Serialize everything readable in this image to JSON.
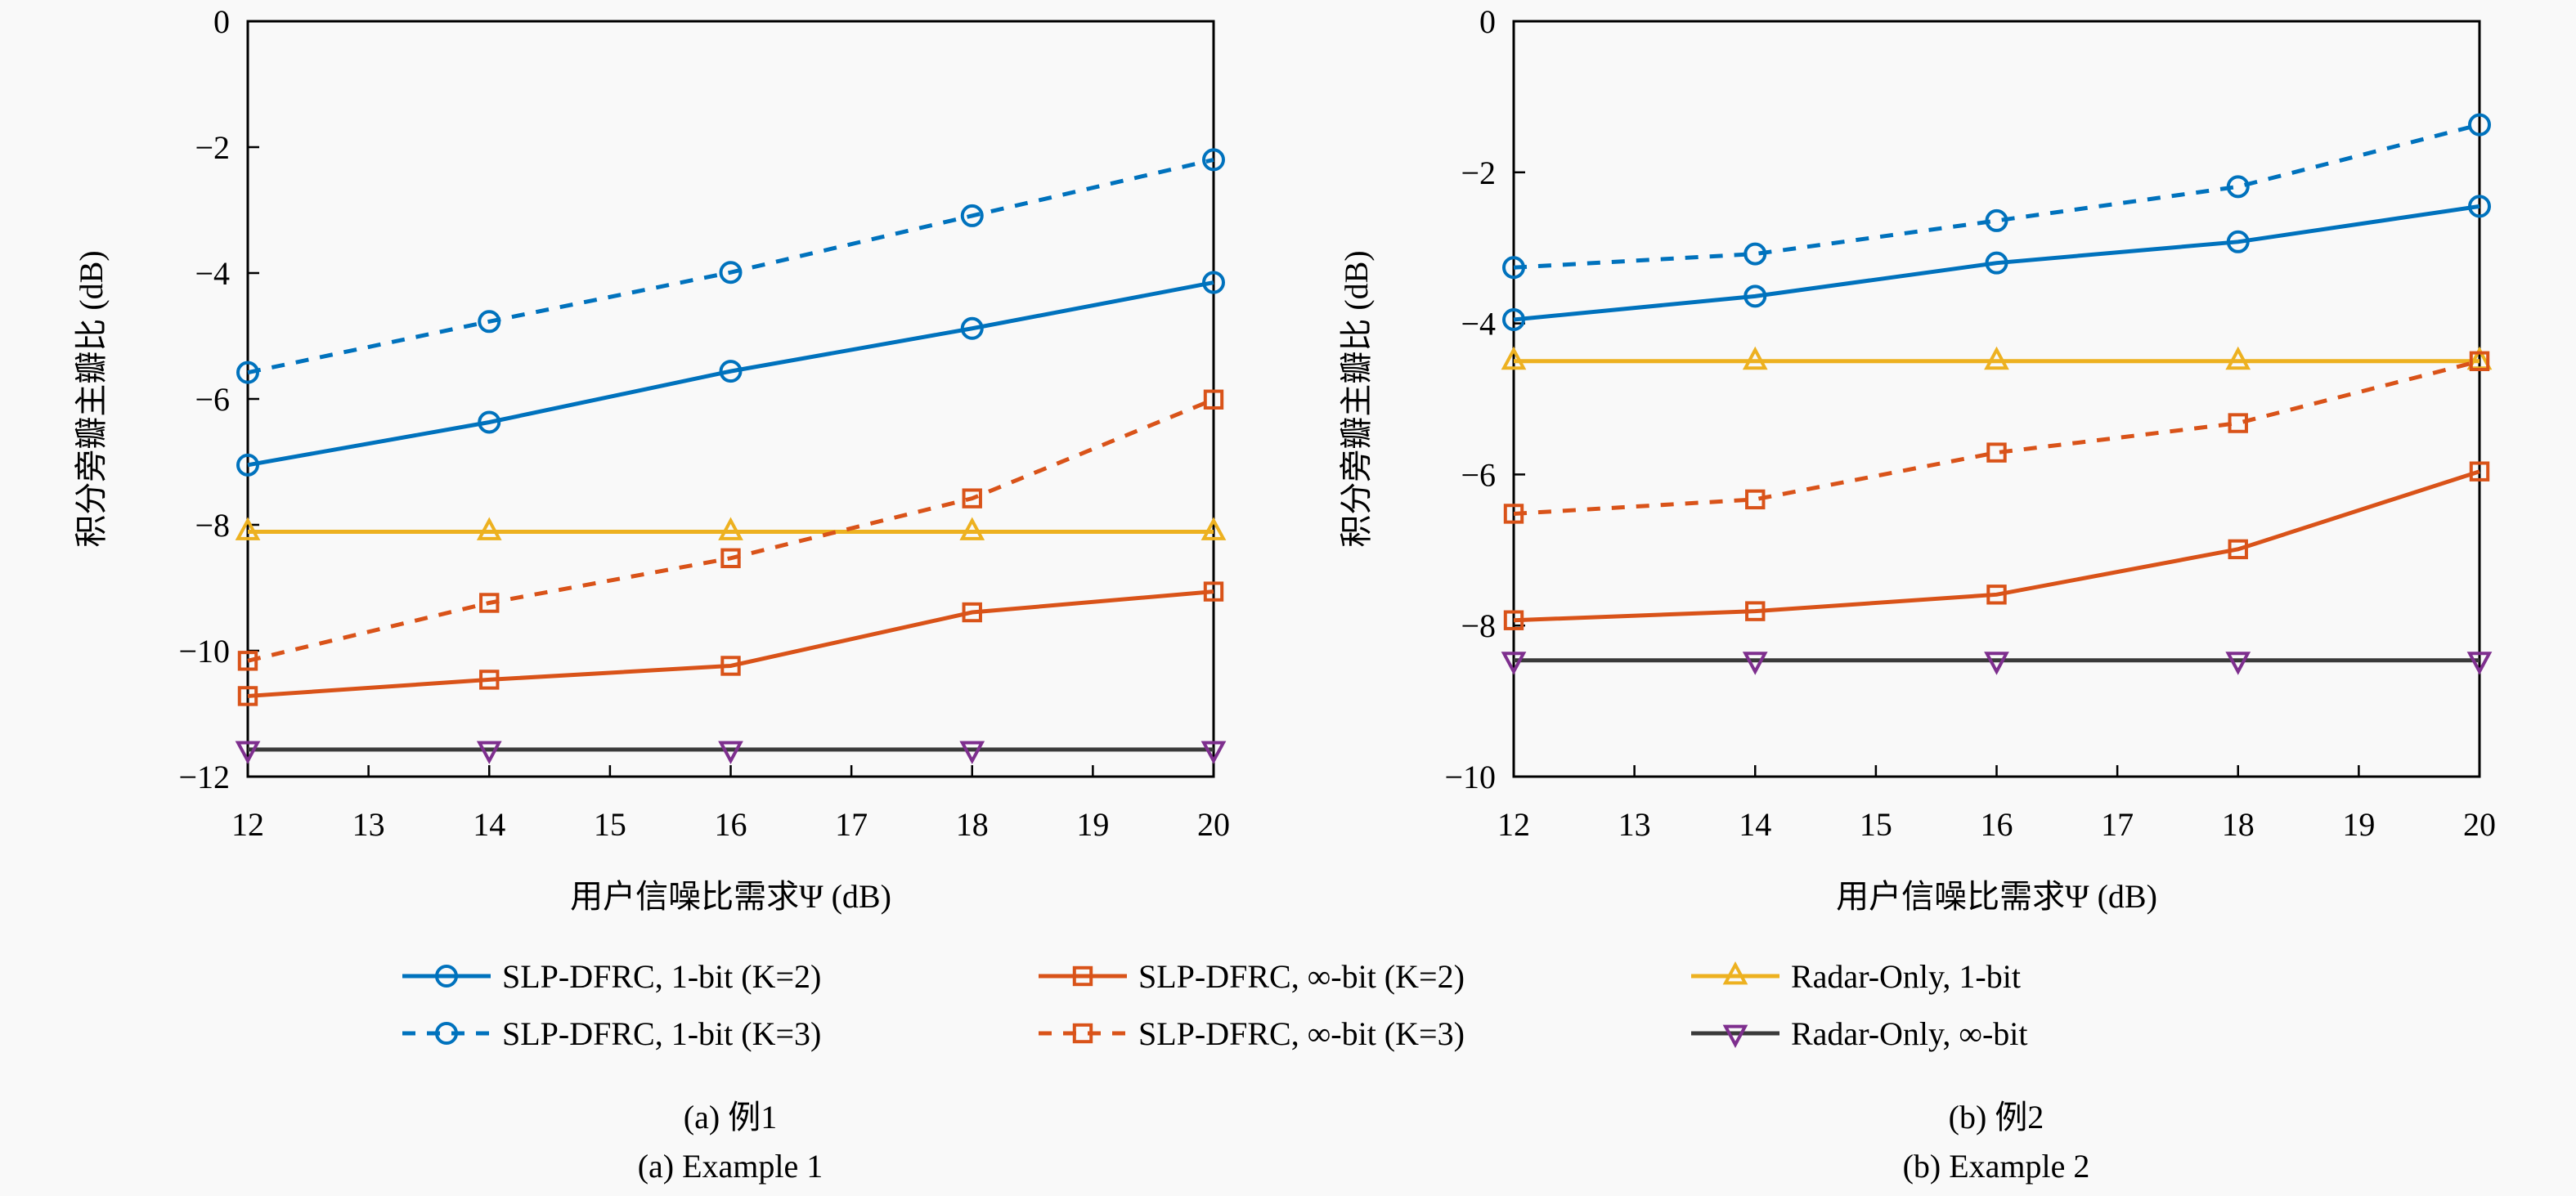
{
  "chart_data": [
    {
      "type": "line",
      "panel": "a",
      "title": "",
      "caption_cn": "(a) 例1",
      "caption_en": "(a) Example 1",
      "xlabel": "用户信噪比需求Ψ (dB)",
      "ylabel": "积分旁瓣主瓣比 (dB)",
      "xlim": [
        12,
        20
      ],
      "ylim": [
        -12,
        0
      ],
      "xticks": [
        "12",
        "13",
        "14",
        "15",
        "16",
        "17",
        "18",
        "19",
        "20"
      ],
      "yticks": [
        "0",
        "−2",
        "−4",
        "−6",
        "−8",
        "−10",
        "−12"
      ],
      "grid": false,
      "x": [
        12,
        14,
        16,
        18,
        20
      ],
      "series": [
        {
          "name": "SLP-DFRC, 1-bit (K=2)",
          "values": [
            -7.05,
            -6.37,
            -5.56,
            -4.88,
            -4.15
          ]
        },
        {
          "name": "SLP-DFRC, 1-bit (K=3)",
          "values": [
            -5.58,
            -4.77,
            -3.99,
            -3.09,
            -2.2
          ]
        },
        {
          "name": "SLP-DFRC, ∞-bit (K=2)",
          "values": [
            -10.72,
            -10.46,
            -10.24,
            -9.39,
            -9.06
          ]
        },
        {
          "name": "SLP-DFRC, ∞-bit (K=3)",
          "values": [
            -10.16,
            -9.24,
            -8.53,
            -7.58,
            -6.01
          ]
        },
        {
          "name": "Radar-Only, 1-bit",
          "values": [
            -8.11,
            -8.11,
            -8.11,
            -8.11,
            -8.11
          ]
        },
        {
          "name": "Radar-Only, ∞-bit",
          "values": [
            -11.57,
            -11.57,
            -11.57,
            -11.57,
            -11.57
          ]
        }
      ]
    },
    {
      "type": "line",
      "panel": "b",
      "title": "",
      "caption_cn": "(b) 例2",
      "caption_en": "(b) Example 2",
      "xlabel": "用户信噪比需求Ψ (dB)",
      "ylabel": "积分旁瓣主瓣比 (dB)",
      "xlim": [
        12,
        20
      ],
      "ylim": [
        -10,
        0
      ],
      "xticks": [
        "12",
        "13",
        "14",
        "15",
        "16",
        "17",
        "18",
        "19",
        "20"
      ],
      "yticks": [
        "0",
        "−2",
        "−4",
        "−6",
        "−8",
        "−10"
      ],
      "grid": false,
      "x": [
        12,
        14,
        16,
        18,
        20
      ],
      "series": [
        {
          "name": "SLP-DFRC, 1-bit (K=2)",
          "values": [
            -3.95,
            -3.64,
            -3.2,
            -2.92,
            -2.45
          ]
        },
        {
          "name": "SLP-DFRC, 1-bit (K=3)",
          "values": [
            -3.26,
            -3.08,
            -2.64,
            -2.19,
            -1.37
          ]
        },
        {
          "name": "SLP-DFRC, ∞-bit (K=2)",
          "values": [
            -7.93,
            -7.81,
            -7.59,
            -6.99,
            -5.96
          ]
        },
        {
          "name": "SLP-DFRC, ∞-bit (K=3)",
          "values": [
            -6.52,
            -6.33,
            -5.71,
            -5.32,
            -4.5
          ]
        },
        {
          "name": "Radar-Only, 1-bit",
          "values": [
            -4.5,
            -4.5,
            -4.5,
            -4.5,
            -4.5
          ]
        },
        {
          "name": "Radar-Only, ∞-bit",
          "values": [
            -8.46,
            -8.46,
            -8.46,
            -8.46,
            -8.46
          ]
        }
      ]
    }
  ],
  "legend": {
    "placement": "bottom-center",
    "entries": [
      {
        "label": "SLP-DFRC, 1-bit (K=2)",
        "color": "#0072BD",
        "style": "solid",
        "marker": "circle"
      },
      {
        "label": "SLP-DFRC, ∞-bit (K=2)",
        "color": "#D95319",
        "style": "solid",
        "marker": "square"
      },
      {
        "label": "Radar-Only, 1-bit",
        "color": "#EDB120",
        "style": "solid",
        "marker": "triangle-up"
      },
      {
        "label": "SLP-DFRC, 1-bit (K=3)",
        "color": "#0072BD",
        "style": "dashed",
        "marker": "circle"
      },
      {
        "label": "SLP-DFRC, ∞-bit (K=3)",
        "color": "#D95319",
        "style": "dashed",
        "marker": "square"
      },
      {
        "label": "Radar-Only, ∞-bit",
        "color": "#3A3A3A",
        "style": "solid",
        "marker": "triangle-down",
        "marker_color": "#7E2F8E"
      }
    ]
  },
  "colors": {
    "blue": "#0072BD",
    "orange": "#D95319",
    "yellow": "#EDB120",
    "dark": "#3A3A3A",
    "purple": "#7E2F8E"
  }
}
